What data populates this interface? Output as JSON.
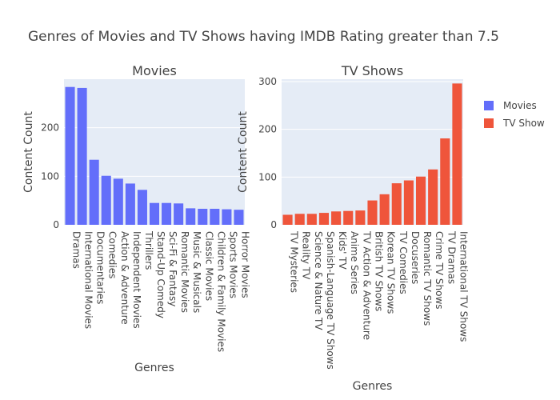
{
  "title": "Genres of Movies and TV Shows having IMDB Rating greater than 7.5",
  "colors": {
    "movies": "#636efa",
    "tv": "#ef553b"
  },
  "legend": {
    "items": [
      "Movies",
      "TV Show"
    ],
    "placement": "top-right"
  },
  "chart_data": [
    {
      "type": "bar",
      "title": "Movies",
      "xlabel": "Genres",
      "ylabel": "Content Count",
      "ylim": [
        0,
        300
      ],
      "yticks": [
        0,
        100,
        200
      ],
      "grid": true,
      "series": [
        {
          "name": "Movies",
          "values": [
            284,
            282,
            134,
            101,
            95,
            85,
            72,
            45,
            45,
            44,
            34,
            33,
            33,
            32,
            31
          ]
        }
      ],
      "categories": [
        "Dramas",
        "International Movies",
        "Documentaries",
        "Comedies",
        "Action & Adventure",
        "Independent Movies",
        "Thrillers",
        "Stand-Up Comedy",
        "Sci-Fi & Fantasy",
        "Romantic Movies",
        "Music & Musicals",
        "Classic Movies",
        "Children & Family Movies",
        "Sports Movies",
        "Horror Movies"
      ]
    },
    {
      "type": "bar",
      "title": "TV Shows",
      "xlabel": "Genres",
      "ylabel": "Content Count",
      "ylim": [
        0,
        305
      ],
      "yticks": [
        0,
        100,
        200,
        300
      ],
      "grid": true,
      "series": [
        {
          "name": "TV Show",
          "values": [
            21,
            23,
            23,
            25,
            28,
            29,
            30,
            51,
            64,
            87,
            93,
            101,
            116,
            181,
            296
          ]
        }
      ],
      "categories": [
        "TV Mysteries",
        "Reality TV",
        "Science & Nature TV",
        "Spanish-Language TV Shows",
        "Kids' TV",
        "Anime Series",
        "TV Action & Adventure",
        "British TV Shows",
        "Korean TV Shows",
        "TV Comedies",
        "Docuseries",
        "Romantic TV Shows",
        "Crime TV Shows",
        "TV Dramas",
        "International TV Shows"
      ]
    }
  ]
}
